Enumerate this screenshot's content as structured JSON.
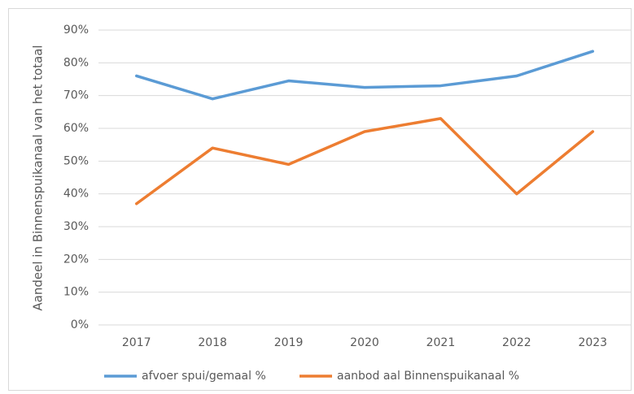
{
  "chart_data": {
    "type": "line",
    "y_label": "Aandeel in Binnenspuikanaal van het totaal",
    "categories": [
      "2017",
      "2018",
      "2019",
      "2020",
      "2021",
      "2022",
      "2023"
    ],
    "series": [
      {
        "name": "afvoer spui/gemaal %",
        "color": "#5b9bd5",
        "values": [
          76,
          69,
          74.5,
          72.5,
          73,
          76,
          83.5
        ]
      },
      {
        "name": "aanbod aal Binnenspuikanaal %",
        "color": "#ed7d31",
        "values": [
          37,
          54,
          49,
          59,
          63,
          40,
          59
        ]
      }
    ],
    "ylim": [
      0,
      90
    ],
    "yticks": [
      {
        "value": 0,
        "label": "0%"
      },
      {
        "value": 10,
        "label": "10%"
      },
      {
        "value": 20,
        "label": "20%"
      },
      {
        "value": 30,
        "label": "30%"
      },
      {
        "value": 40,
        "label": "40%"
      },
      {
        "value": 50,
        "label": "50%"
      },
      {
        "value": 60,
        "label": "60%"
      },
      {
        "value": 70,
        "label": "70%"
      },
      {
        "value": 80,
        "label": "80%"
      },
      {
        "value": 90,
        "label": "90%"
      }
    ],
    "grid": true,
    "legend": "bottom"
  }
}
